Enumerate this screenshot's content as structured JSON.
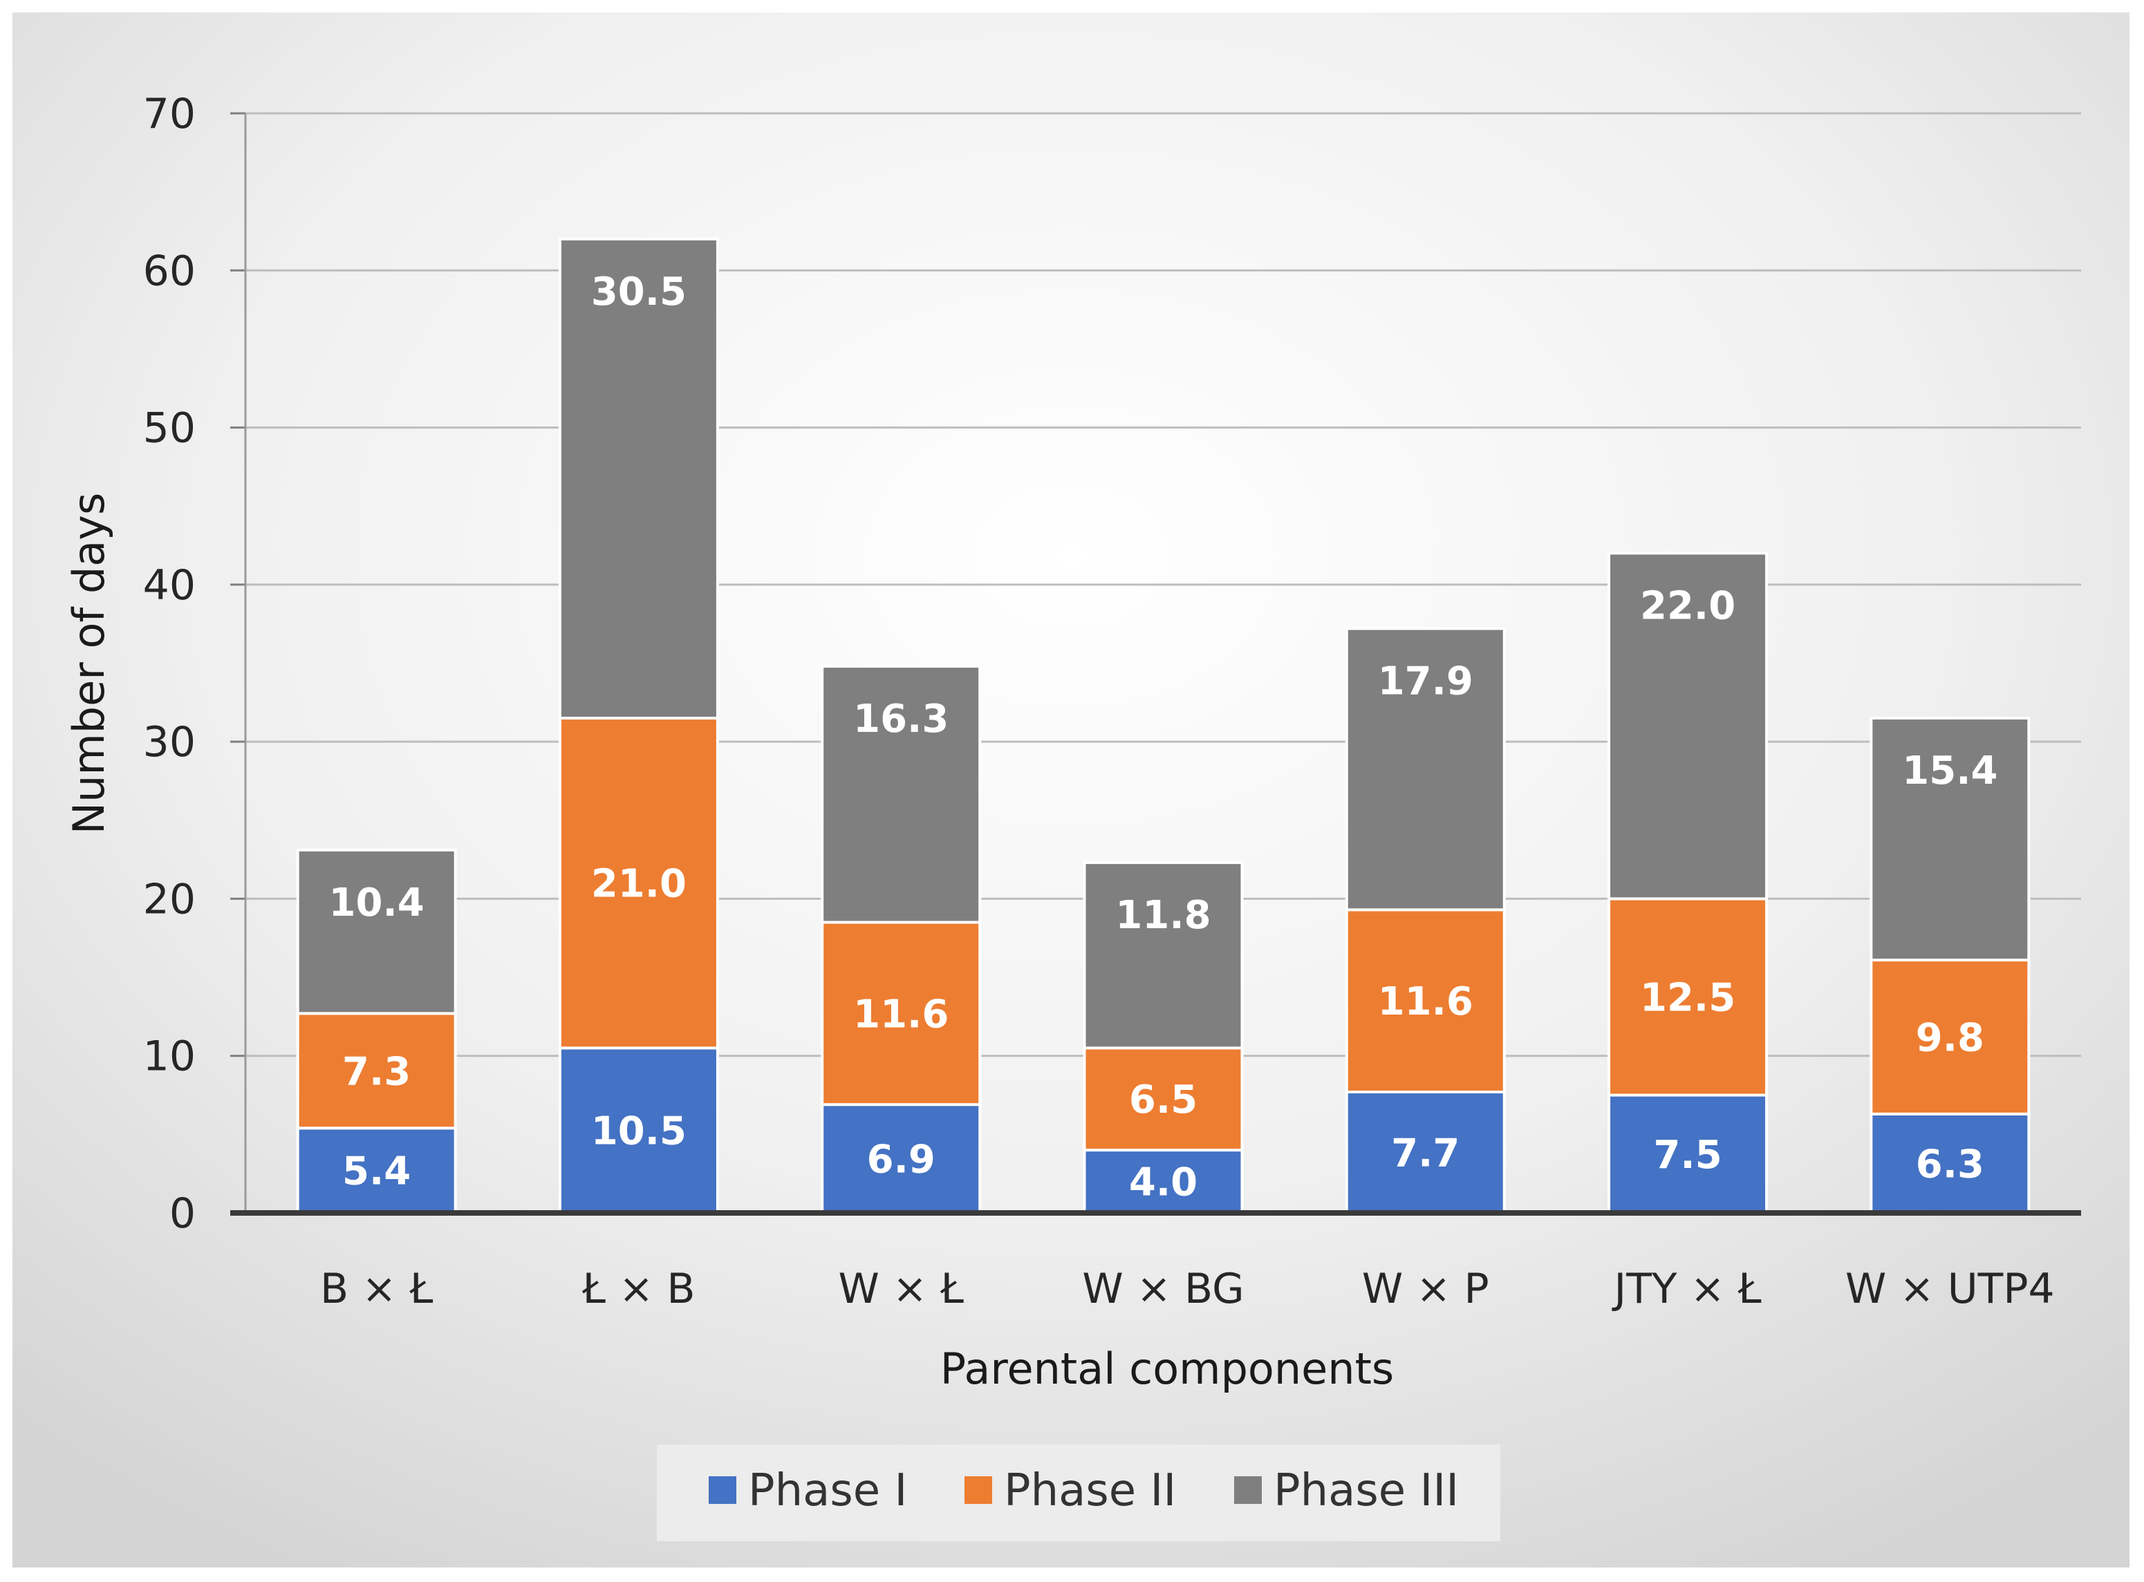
{
  "chart_data": {
    "type": "bar",
    "stacked": true,
    "title": "",
    "xlabel": "Parental components",
    "ylabel": "Number of days",
    "ylim": [
      0,
      70
    ],
    "yticks": [
      0,
      10,
      20,
      30,
      40,
      50,
      60,
      70
    ],
    "ytick_labels": [
      "0",
      "10",
      "20",
      "30",
      "40",
      "50",
      "60",
      "70"
    ],
    "grid": true,
    "legend_position": "bottom",
    "categories": [
      "B × Ł",
      "Ł × B",
      "W × Ł",
      "W × BG",
      "W × P",
      "JTY × Ł",
      "W × UTP4"
    ],
    "series": [
      {
        "name": "Phase I",
        "color": "#4472c4",
        "values": [
          5.4,
          10.5,
          6.9,
          4.0,
          7.7,
          7.5,
          6.3
        ],
        "labels": [
          "5.4",
          "10.5",
          "6.9",
          "4.0",
          "7.7",
          "7.5",
          "6.3"
        ]
      },
      {
        "name": "Phase II",
        "color": "#ed7d31",
        "values": [
          7.3,
          21.0,
          11.6,
          6.5,
          11.6,
          12.5,
          9.8
        ],
        "labels": [
          "7.3",
          "21.0",
          "11.6",
          "6.5",
          "11.6",
          "12.5",
          "9.8"
        ]
      },
      {
        "name": "Phase III",
        "color": "#7f7f7f",
        "values": [
          10.4,
          30.5,
          16.3,
          11.8,
          17.9,
          22.0,
          15.4
        ],
        "labels": [
          "10.4",
          "30.5",
          "16.3",
          "11.8",
          "17.9",
          "22.0",
          "15.4"
        ]
      }
    ]
  }
}
